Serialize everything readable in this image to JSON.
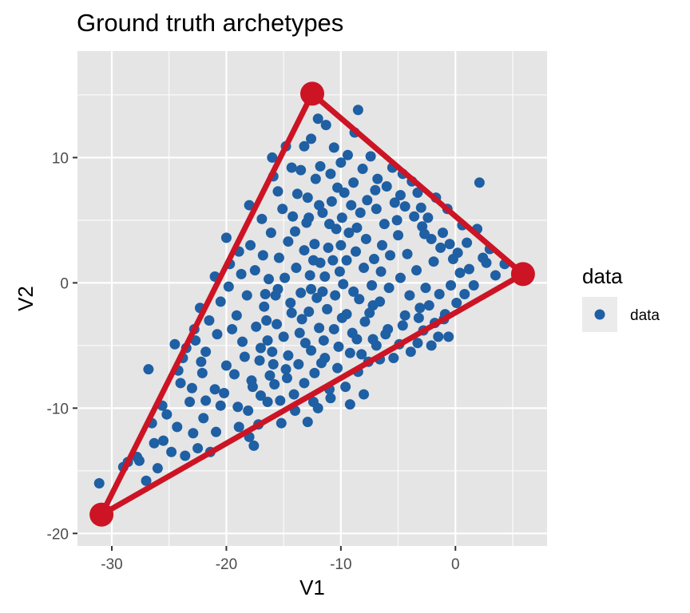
{
  "chart_data": {
    "type": "scatter",
    "title": "Ground truth archetypes",
    "xlabel": "V1",
    "ylabel": "V2",
    "xlim": [
      -33,
      8
    ],
    "ylim": [
      -21,
      18.5
    ],
    "x_ticks": [
      -30,
      -20,
      -10,
      0
    ],
    "y_ticks": [
      -20,
      -10,
      0,
      10
    ],
    "x_tick_labels": [
      "-30",
      "-20",
      "-10",
      "0"
    ],
    "y_tick_labels": [
      "-20",
      "-10",
      "0",
      "10"
    ],
    "grid": true,
    "legend": {
      "title": "data",
      "placement": "right",
      "entries": [
        {
          "label": "data",
          "color": "#1f5fa3"
        }
      ]
    },
    "colors": {
      "data_points": "#1f5fa3",
      "archetypes": "#cc1424",
      "panel_background": "#e5e5e5",
      "grid": "#ffffff"
    },
    "archetypes": [
      {
        "x": -12.5,
        "y": 15.1
      },
      {
        "x": 5.9,
        "y": 0.7
      },
      {
        "x": -30.9,
        "y": -18.5
      }
    ],
    "series": [
      {
        "name": "data",
        "points": [
          [
            -31.1,
            -16.0
          ],
          [
            -29.0,
            -14.7
          ],
          [
            -27.8,
            -13.9
          ],
          [
            -27.0,
            -15.8
          ],
          [
            -26.0,
            -14.8
          ],
          [
            -25.5,
            -12.6
          ],
          [
            -25.2,
            -10.5
          ],
          [
            -24.3,
            -11.5
          ],
          [
            -26.8,
            -6.9
          ],
          [
            -24.0,
            -8.0
          ],
          [
            -23.2,
            -9.5
          ],
          [
            -22.0,
            -10.8
          ],
          [
            -21.4,
            -13.5
          ],
          [
            -23.6,
            -13.8
          ],
          [
            -22.9,
            -12.0
          ],
          [
            -22.1,
            -7.2
          ],
          [
            -21.0,
            -8.5
          ],
          [
            -20.5,
            -9.8
          ],
          [
            -21.8,
            -5.5
          ],
          [
            -22.7,
            -4.6
          ],
          [
            -24.5,
            -4.9
          ],
          [
            -20.0,
            -6.6
          ],
          [
            -19.5,
            -3.7
          ],
          [
            -22.3,
            -2.0
          ],
          [
            -21.5,
            -3.0
          ],
          [
            -20.5,
            -1.5
          ],
          [
            -19.1,
            -2.6
          ],
          [
            -21.0,
            0.5
          ],
          [
            -19.7,
            1.5
          ],
          [
            -20.0,
            3.6
          ],
          [
            -18.9,
            2.5
          ],
          [
            -18.2,
            -1.0
          ],
          [
            -18.6,
            -4.7
          ],
          [
            -17.8,
            -7.8
          ],
          [
            -18.1,
            -10.2
          ],
          [
            -17.2,
            -11.3
          ],
          [
            -16.4,
            -9.5
          ],
          [
            -15.9,
            -6.5
          ],
          [
            -17.0,
            -5.2
          ],
          [
            -16.5,
            -3.0
          ],
          [
            -15.7,
            -1.0
          ],
          [
            -17.5,
            1.0
          ],
          [
            -16.3,
            0.3
          ],
          [
            -15.4,
            2.0
          ],
          [
            -18.0,
            6.2
          ],
          [
            -16.9,
            5.1
          ],
          [
            -16.1,
            4.0
          ],
          [
            -15.5,
            7.3
          ],
          [
            -16.0,
            10.0
          ],
          [
            -14.8,
            10.9
          ],
          [
            -14.3,
            9.2
          ],
          [
            -13.8,
            7.1
          ],
          [
            -13.2,
            10.9
          ],
          [
            -12.6,
            11.5
          ],
          [
            -12.0,
            13.1
          ],
          [
            -11.3,
            12.6
          ],
          [
            -10.6,
            10.8
          ],
          [
            -11.8,
            9.3
          ],
          [
            -10.9,
            8.7
          ],
          [
            -10.0,
            9.6
          ],
          [
            -9.4,
            10.2
          ],
          [
            -8.8,
            12.0
          ],
          [
            -8.5,
            13.8
          ],
          [
            -8.1,
            9.1
          ],
          [
            -7.4,
            10.1
          ],
          [
            -6.8,
            8.3
          ],
          [
            -6.0,
            7.7
          ],
          [
            -5.3,
            6.4
          ],
          [
            -4.6,
            8.7
          ],
          [
            -3.8,
            8.1
          ],
          [
            -3.0,
            6.0
          ],
          [
            -2.4,
            5.2
          ],
          [
            -1.7,
            6.8
          ],
          [
            -1.1,
            4.0
          ],
          [
            -0.5,
            3.1
          ],
          [
            0.2,
            2.4
          ],
          [
            1.0,
            3.2
          ],
          [
            1.9,
            4.3
          ],
          [
            2.7,
            1.6
          ],
          [
            3.5,
            0.6
          ],
          [
            4.3,
            1.5
          ],
          [
            2.1,
            8.0
          ],
          [
            -0.6,
            -4.3
          ],
          [
            -1.8,
            -3.2
          ],
          [
            -3.1,
            -2.0
          ],
          [
            -3.3,
            -4.8
          ],
          [
            -4.4,
            -2.6
          ],
          [
            -4.9,
            -4.9
          ],
          [
            -5.9,
            -3.7
          ],
          [
            -6.6,
            -6.1
          ],
          [
            -7.2,
            -1.8
          ],
          [
            -7.9,
            -3.1
          ],
          [
            -8.6,
            -4.5
          ],
          [
            -9.2,
            -5.6
          ],
          [
            -9.9,
            -2.8
          ],
          [
            -10.3,
            -6.8
          ],
          [
            -11.0,
            -8.5
          ],
          [
            -11.7,
            -6.4
          ],
          [
            -12.4,
            -9.5
          ],
          [
            -13.2,
            -8.0
          ],
          [
            -14.1,
            -8.9
          ],
          [
            -14.8,
            -6.9
          ],
          [
            -15.3,
            -9.4
          ],
          [
            -13.6,
            -4.0
          ],
          [
            -12.8,
            -2.3
          ],
          [
            -12.1,
            -1.2
          ],
          [
            -11.4,
            0.5
          ],
          [
            -10.7,
            1.8
          ],
          [
            -10.0,
            3.0
          ],
          [
            -9.3,
            4.0
          ],
          [
            -8.7,
            2.5
          ],
          [
            -8.0,
            1.2
          ],
          [
            -7.3,
            -0.2
          ],
          [
            -6.5,
            0.9
          ],
          [
            -5.7,
            2.2
          ],
          [
            -5.0,
            3.8
          ],
          [
            -4.2,
            2.3
          ],
          [
            -3.4,
            1.0
          ],
          [
            -2.6,
            -0.4
          ],
          [
            -1.9,
            1.7
          ],
          [
            -13.9,
            1.2
          ],
          [
            -14.6,
            3.3
          ],
          [
            -13.0,
            4.8
          ],
          [
            -12.3,
            3.1
          ],
          [
            -11.6,
            5.6
          ],
          [
            -10.8,
            6.5
          ],
          [
            -9.7,
            7.2
          ],
          [
            -12.9,
            6.8
          ],
          [
            -14.2,
            5.3
          ],
          [
            -15.1,
            5.9
          ],
          [
            -12.6,
            -0.5
          ],
          [
            -11.9,
            -3.6
          ],
          [
            -11.2,
            -2.1
          ],
          [
            -10.5,
            -1.0
          ],
          [
            -9.8,
            -0.1
          ],
          [
            -14.4,
            -1.6
          ],
          [
            -13.4,
            -2.9
          ],
          [
            -15.0,
            -4.3
          ],
          [
            -16.7,
            -1.9
          ],
          [
            -17.4,
            -3.5
          ],
          [
            -18.4,
            -5.9
          ],
          [
            -19.3,
            -7.3
          ],
          [
            -20.2,
            -8.8
          ],
          [
            -19.0,
            -9.9
          ],
          [
            -18.0,
            -12.3
          ],
          [
            -17.6,
            -13.0
          ],
          [
            -22.5,
            -13.2
          ],
          [
            -24.8,
            -13.5
          ],
          [
            -26.3,
            -12.8
          ],
          [
            -27.6,
            -14.2
          ],
          [
            -28.6,
            -14.3
          ],
          [
            -23.8,
            -6.0
          ],
          [
            -22.8,
            -3.7
          ],
          [
            -23.5,
            -5.2
          ],
          [
            -20.8,
            -4.1
          ],
          [
            -19.8,
            -0.3
          ],
          [
            -18.7,
            0.7
          ],
          [
            -17.9,
            3.0
          ],
          [
            -16.8,
            2.2
          ],
          [
            -16.2,
            -7.4
          ],
          [
            -15.2,
            -11.2
          ],
          [
            -14.0,
            -10.2
          ],
          [
            -12.9,
            -11.1
          ],
          [
            -12.0,
            -10.0
          ],
          [
            -10.9,
            -9.2
          ],
          [
            -9.6,
            -8.3
          ],
          [
            -8.5,
            -7.1
          ],
          [
            -7.6,
            -6.3
          ],
          [
            -6.9,
            -5.0
          ],
          [
            -6.1,
            -4.1
          ],
          [
            -5.4,
            -6.0
          ],
          [
            -4.6,
            -3.4
          ],
          [
            -3.9,
            -5.5
          ],
          [
            -2.8,
            -3.8
          ],
          [
            -1.5,
            -4.3
          ],
          [
            -0.9,
            -2.5
          ],
          [
            0.1,
            -1.6
          ],
          [
            0.8,
            -0.9
          ],
          [
            1.6,
            -0.2
          ],
          [
            0.4,
            0.8
          ],
          [
            -0.2,
            1.9
          ],
          [
            -1.3,
            2.8
          ],
          [
            -2.1,
            3.5
          ],
          [
            -2.9,
            4.5
          ],
          [
            -3.6,
            5.3
          ],
          [
            -4.4,
            6.1
          ],
          [
            -5.1,
            5.0
          ],
          [
            -6.2,
            4.7
          ],
          [
            -6.9,
            5.9
          ],
          [
            -7.7,
            6.6
          ],
          [
            -8.3,
            5.6
          ],
          [
            -9.1,
            6.2
          ],
          [
            -9.9,
            5.2
          ],
          [
            -10.4,
            4.3
          ],
          [
            -11.1,
            2.8
          ],
          [
            -11.8,
            1.6
          ],
          [
            -12.7,
            0.6
          ],
          [
            -13.5,
            -0.8
          ],
          [
            -14.3,
            -2.4
          ],
          [
            -15.6,
            -3.3
          ],
          [
            -16.4,
            -4.6
          ],
          [
            -17.1,
            -6.2
          ],
          [
            -15.8,
            -8.1
          ],
          [
            -14.7,
            -7.6
          ],
          [
            -13.7,
            -6.5
          ],
          [
            -12.6,
            -5.4
          ],
          [
            -11.5,
            -4.6
          ],
          [
            -10.6,
            -3.7
          ],
          [
            -9.5,
            -2.5
          ],
          [
            -8.4,
            -1.3
          ],
          [
            -7.5,
            -2.4
          ],
          [
            -6.6,
            -1.5
          ],
          [
            -5.8,
            -0.4
          ],
          [
            -4.8,
            0.4
          ],
          [
            -4.0,
            -1.0
          ],
          [
            -3.2,
            -2.8
          ],
          [
            -2.3,
            -1.8
          ],
          [
            -1.4,
            -0.9
          ],
          [
            -0.4,
            -0.2
          ],
          [
            1.2,
            1.1
          ],
          [
            2.4,
            2.0
          ],
          [
            3.0,
            2.7
          ],
          [
            -8.9,
            8.0
          ],
          [
            -7.0,
            7.4
          ],
          [
            -5.5,
            9.2
          ],
          [
            -4.8,
            7.0
          ],
          [
            -3.3,
            7.2
          ],
          [
            -2.7,
            3.9
          ],
          [
            -12.2,
            8.3
          ],
          [
            -13.5,
            9.0
          ],
          [
            -15.9,
            8.5
          ],
          [
            -17.0,
            -9.0
          ],
          [
            -18.9,
            -11.5
          ],
          [
            -20.9,
            -11.9
          ],
          [
            -21.8,
            -9.4
          ],
          [
            -23.0,
            -8.4
          ],
          [
            -24.2,
            -7.0
          ],
          [
            -25.6,
            -9.8
          ],
          [
            -26.5,
            -11.2
          ],
          [
            -22.2,
            -6.3
          ],
          [
            -12.3,
            -7.2
          ],
          [
            -11.4,
            -6.0
          ],
          [
            -10.2,
            -5.1
          ],
          [
            -9.0,
            -4.0
          ],
          [
            -8.2,
            -5.7
          ],
          [
            -7.2,
            -4.5
          ],
          [
            -13.1,
            -4.8
          ],
          [
            -14.6,
            -5.8
          ],
          [
            -16.0,
            -5.5
          ],
          [
            -17.7,
            -8.3
          ],
          [
            -10.1,
            0.9
          ],
          [
            -9.5,
            1.8
          ],
          [
            -8.9,
            -0.7
          ],
          [
            -11.6,
            -0.7
          ],
          [
            -12.4,
            1.8
          ],
          [
            -13.2,
            2.6
          ],
          [
            -14.0,
            4.1
          ],
          [
            -14.9,
            0.4
          ],
          [
            -15.5,
            -0.5
          ],
          [
            -16.6,
            -0.9
          ],
          [
            -6.4,
            3.0
          ],
          [
            -7.1,
            1.9
          ],
          [
            -7.8,
            3.5
          ],
          [
            -8.6,
            4.4
          ],
          [
            -10.3,
            7.6
          ],
          [
            -11.0,
            4.7
          ],
          [
            -11.9,
            6.2
          ],
          [
            -12.8,
            5.2
          ],
          [
            -9.2,
            -9.7
          ],
          [
            -8.0,
            -8.9
          ],
          [
            -0.7,
            5.9
          ],
          [
            0.6,
            4.6
          ],
          [
            -1.0,
            -2.9
          ],
          [
            -2.1,
            -5.0
          ]
        ]
      }
    ]
  }
}
